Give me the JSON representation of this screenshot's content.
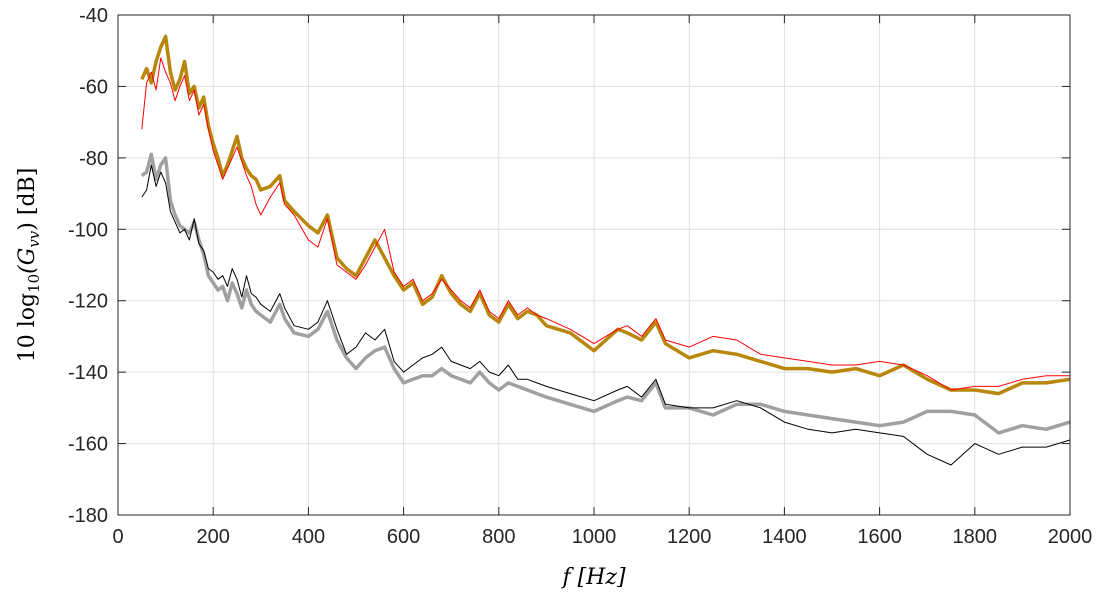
{
  "chart_data": {
    "type": "line",
    "xlabel": "f  [Hz]",
    "ylabel": "10 log10(Gvv)  [dB]",
    "ylabel_parts": {
      "pre": "10 log",
      "sub1": "10",
      "mid": "(G",
      "sub2": "vv",
      "post": ")  [dB]"
    },
    "xlim": [
      0,
      2000
    ],
    "ylim": [
      -180,
      -40
    ],
    "grid": true,
    "x_ticks": [
      "0",
      "200",
      "400",
      "600",
      "800",
      "1000",
      "1200",
      "1400",
      "1600",
      "1800",
      "2000"
    ],
    "y_ticks": [
      "-40",
      "-60",
      "-80",
      "-100",
      "-120",
      "-140",
      "-160",
      "-180"
    ],
    "series": [
      {
        "color": "#b8860b",
        "style": "thick",
        "x": [
          50,
          60,
          70,
          80,
          90,
          100,
          110,
          120,
          130,
          140,
          150,
          160,
          170,
          180,
          190,
          200,
          210,
          220,
          230,
          240,
          250,
          260,
          270,
          280,
          290,
          300,
          320,
          340,
          350,
          370,
          400,
          420,
          440,
          460,
          480,
          500,
          520,
          540,
          560,
          580,
          600,
          620,
          640,
          660,
          680,
          700,
          720,
          740,
          760,
          780,
          800,
          820,
          840,
          860,
          880,
          900,
          950,
          1000,
          1050,
          1070,
          1100,
          1130,
          1150,
          1200,
          1250,
          1300,
          1350,
          1400,
          1450,
          1500,
          1550,
          1600,
          1650,
          1700,
          1750,
          1800,
          1850,
          1900,
          1950,
          2000
        ],
        "y": [
          -58,
          -55,
          -59,
          -53,
          -49,
          -46,
          -56,
          -61,
          -58,
          -53,
          -62,
          -60,
          -66,
          -63,
          -71,
          -76,
          -80,
          -85,
          -82,
          -78,
          -74,
          -80,
          -83,
          -85,
          -86,
          -89,
          -88,
          -85,
          -92,
          -95,
          -99,
          -101,
          -96,
          -108,
          -111,
          -113,
          -108,
          -103,
          -108,
          -113,
          -117,
          -115,
          -121,
          -119,
          -113,
          -118,
          -121,
          -123,
          -118,
          -124,
          -126,
          -121,
          -125,
          -123,
          -124,
          -127,
          -129,
          -134,
          -128,
          -129,
          -131,
          -126,
          -132,
          -136,
          -134,
          -135,
          -137,
          -139,
          -139,
          -140,
          -139,
          -141,
          -138,
          -142,
          -145,
          -145,
          -146,
          -143,
          -143,
          -142
        ]
      },
      {
        "color": "#ff0000",
        "style": "thin",
        "x": [
          50,
          60,
          70,
          80,
          90,
          100,
          110,
          120,
          130,
          140,
          150,
          160,
          170,
          180,
          190,
          200,
          210,
          220,
          230,
          240,
          250,
          260,
          270,
          280,
          290,
          300,
          320,
          340,
          350,
          370,
          400,
          420,
          440,
          460,
          480,
          500,
          520,
          540,
          560,
          580,
          600,
          620,
          640,
          660,
          680,
          700,
          720,
          740,
          760,
          780,
          800,
          820,
          840,
          860,
          880,
          900,
          950,
          1000,
          1050,
          1070,
          1100,
          1130,
          1150,
          1200,
          1250,
          1300,
          1350,
          1400,
          1450,
          1500,
          1550,
          1600,
          1650,
          1700,
          1750,
          1800,
          1850,
          1900,
          1950,
          2000
        ],
        "y": [
          -72,
          -59,
          -56,
          -61,
          -52,
          -56,
          -59,
          -64,
          -60,
          -57,
          -64,
          -61,
          -68,
          -65,
          -72,
          -78,
          -82,
          -86,
          -83,
          -80,
          -77,
          -81,
          -85,
          -88,
          -93,
          -96,
          -91,
          -87,
          -93,
          -96,
          -103,
          -105,
          -97,
          -110,
          -112,
          -114,
          -110,
          -105,
          -100,
          -112,
          -116,
          -114,
          -120,
          -118,
          -114,
          -117,
          -120,
          -122,
          -117,
          -123,
          -125,
          -120,
          -124,
          -122,
          -124,
          -125,
          -128,
          -132,
          -128,
          -127,
          -130,
          -125,
          -131,
          -133,
          -130,
          -131,
          -135,
          -136,
          -137,
          -138,
          -138,
          -137,
          -138,
          -141,
          -145,
          -144,
          -144,
          -142,
          -141,
          -141
        ]
      },
      {
        "color": "#a0a0a0",
        "style": "thick",
        "x": [
          50,
          60,
          70,
          80,
          90,
          100,
          110,
          120,
          130,
          140,
          150,
          160,
          170,
          180,
          190,
          200,
          210,
          220,
          230,
          240,
          250,
          260,
          270,
          280,
          290,
          300,
          320,
          340,
          350,
          370,
          400,
          420,
          440,
          460,
          480,
          500,
          520,
          540,
          560,
          580,
          600,
          620,
          640,
          660,
          680,
          700,
          720,
          740,
          760,
          780,
          800,
          820,
          840,
          860,
          880,
          900,
          950,
          1000,
          1050,
          1070,
          1100,
          1130,
          1150,
          1200,
          1250,
          1300,
          1350,
          1400,
          1450,
          1500,
          1550,
          1600,
          1650,
          1700,
          1750,
          1800,
          1850,
          1900,
          1950,
          2000
        ],
        "y": [
          -85,
          -84,
          -79,
          -86,
          -82,
          -80,
          -92,
          -96,
          -99,
          -100,
          -101,
          -98,
          -103,
          -107,
          -113,
          -115,
          -117,
          -116,
          -120,
          -115,
          -118,
          -122,
          -117,
          -121,
          -123,
          -124,
          -126,
          -121,
          -125,
          -129,
          -130,
          -128,
          -123,
          -131,
          -136,
          -139,
          -136,
          -134,
          -133,
          -139,
          -143,
          -142,
          -141,
          -141,
          -139,
          -141,
          -142,
          -143,
          -140,
          -143,
          -145,
          -143,
          -144,
          -145,
          -146,
          -147,
          -149,
          -151,
          -148,
          -147,
          -148,
          -143,
          -150,
          -150,
          -152,
          -149,
          -149,
          -151,
          -152,
          -153,
          -154,
          -155,
          -154,
          -151,
          -151,
          -152,
          -157,
          -155,
          -156,
          -154
        ]
      },
      {
        "color": "#000000",
        "style": "thin",
        "x": [
          50,
          60,
          70,
          80,
          90,
          100,
          110,
          120,
          130,
          140,
          150,
          160,
          170,
          180,
          190,
          200,
          210,
          220,
          230,
          240,
          250,
          260,
          270,
          280,
          290,
          300,
          320,
          340,
          350,
          370,
          400,
          420,
          440,
          460,
          480,
          500,
          520,
          540,
          560,
          580,
          600,
          620,
          640,
          660,
          680,
          700,
          720,
          740,
          760,
          780,
          800,
          820,
          840,
          860,
          880,
          900,
          950,
          1000,
          1050,
          1070,
          1100,
          1130,
          1150,
          1200,
          1250,
          1300,
          1350,
          1400,
          1450,
          1500,
          1550,
          1600,
          1650,
          1700,
          1750,
          1800,
          1850,
          1900,
          1950,
          2000
        ],
        "y": [
          -91,
          -89,
          -82,
          -88,
          -84,
          -87,
          -95,
          -98,
          -101,
          -100,
          -103,
          -97,
          -104,
          -106,
          -111,
          -112,
          -114,
          -113,
          -116,
          -111,
          -114,
          -119,
          -113,
          -118,
          -119,
          -121,
          -123,
          -118,
          -122,
          -127,
          -128,
          -126,
          -120,
          -128,
          -135,
          -133,
          -129,
          -131,
          -128,
          -137,
          -140,
          -138,
          -136,
          -135,
          -133,
          -137,
          -138,
          -139,
          -137,
          -140,
          -141,
          -138,
          -142,
          -142,
          -143,
          -144,
          -146,
          -148,
          -145,
          -144,
          -147,
          -142,
          -149,
          -150,
          -150,
          -148,
          -150,
          -154,
          -156,
          -157,
          -156,
          -157,
          -158,
          -163,
          -166,
          -160,
          -163,
          -161,
          -161,
          -159
        ]
      }
    ]
  }
}
